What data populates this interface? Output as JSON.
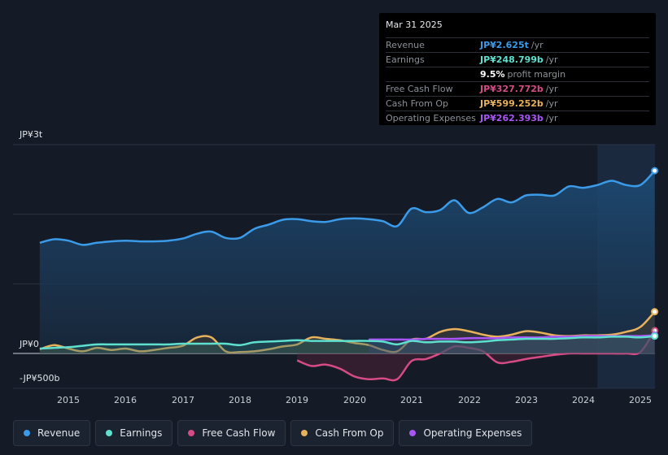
{
  "tooltip": {
    "date": "Mar 31 2025",
    "rows": [
      {
        "label": "Revenue",
        "value": "JP¥2.625t",
        "unit": "/yr",
        "color": "#3b9be8"
      },
      {
        "label": "Earnings",
        "value": "JP¥248.799b",
        "unit": "/yr",
        "color": "#5ee0cf"
      },
      {
        "label": "",
        "value": "9.5%",
        "unit": "profit margin",
        "color": "#ffffff"
      },
      {
        "label": "Free Cash Flow",
        "value": "JP¥327.772b",
        "unit": "/yr",
        "color": "#d64b86"
      },
      {
        "label": "Cash From Op",
        "value": "JP¥599.252b",
        "unit": "/yr",
        "color": "#e8b15c"
      },
      {
        "label": "Operating Expenses",
        "value": "JP¥262.393b",
        "unit": "/yr",
        "color": "#a855f7"
      }
    ]
  },
  "axis": {
    "top": "JP¥3t",
    "zero": "JP¥0",
    "bottom": "-JP¥500b"
  },
  "years": [
    "2015",
    "2016",
    "2017",
    "2018",
    "2019",
    "2020",
    "2021",
    "2022",
    "2023",
    "2024",
    "2025"
  ],
  "legend": [
    {
      "label": "Revenue",
      "color": "#3b9be8"
    },
    {
      "label": "Earnings",
      "color": "#5ee0cf"
    },
    {
      "label": "Free Cash Flow",
      "color": "#d64b86"
    },
    {
      "label": "Cash From Op",
      "color": "#e8b15c"
    },
    {
      "label": "Operating Expenses",
      "color": "#a855f7"
    }
  ],
  "chart_data": {
    "type": "area",
    "title": "",
    "xlabel": "",
    "ylabel": "",
    "ylim": [
      -500,
      3000
    ],
    "units": "JP¥ billions",
    "x": [
      2014.5,
      2014.75,
      2015.0,
      2015.25,
      2015.5,
      2015.75,
      2016.0,
      2016.25,
      2016.5,
      2016.75,
      2017.0,
      2017.25,
      2017.5,
      2017.75,
      2018.0,
      2018.25,
      2018.5,
      2018.75,
      2019.0,
      2019.25,
      2019.5,
      2019.75,
      2020.0,
      2020.25,
      2020.5,
      2020.75,
      2021.0,
      2021.25,
      2021.5,
      2021.75,
      2022.0,
      2022.25,
      2022.5,
      2022.75,
      2023.0,
      2023.25,
      2023.5,
      2023.75,
      2024.0,
      2024.25,
      2024.5,
      2024.75,
      2025.0,
      2025.25
    ],
    "series": [
      {
        "name": "Revenue",
        "values": [
          1590,
          1640,
          1620,
          1560,
          1590,
          1610,
          1620,
          1610,
          1610,
          1620,
          1650,
          1720,
          1750,
          1660,
          1660,
          1790,
          1850,
          1920,
          1930,
          1900,
          1890,
          1930,
          1940,
          1930,
          1900,
          1830,
          2080,
          2030,
          2060,
          2200,
          2020,
          2100,
          2220,
          2170,
          2270,
          2280,
          2270,
          2400,
          2380,
          2420,
          2480,
          2420,
          2420,
          2625
        ]
      },
      {
        "name": "Earnings",
        "values": [
          70,
          80,
          90,
          110,
          130,
          130,
          130,
          130,
          130,
          130,
          140,
          140,
          140,
          140,
          120,
          160,
          170,
          180,
          190,
          180,
          180,
          180,
          180,
          180,
          170,
          130,
          180,
          160,
          170,
          170,
          160,
          170,
          190,
          200,
          210,
          210,
          210,
          220,
          230,
          230,
          240,
          240,
          230,
          249
        ]
      },
      {
        "name": "Free Cash Flow",
        "values": [
          null,
          null,
          null,
          null,
          null,
          null,
          null,
          null,
          null,
          null,
          null,
          null,
          null,
          null,
          null,
          null,
          null,
          null,
          -100,
          -180,
          -160,
          -220,
          -330,
          -370,
          -360,
          -370,
          -110,
          -80,
          0,
          100,
          80,
          30,
          -130,
          -120,
          -80,
          -50,
          -20,
          0,
          0,
          0,
          0,
          0,
          20,
          328
        ]
      },
      {
        "name": "Cash From Op",
        "values": [
          60,
          120,
          70,
          30,
          80,
          50,
          70,
          30,
          50,
          80,
          110,
          230,
          230,
          30,
          20,
          30,
          60,
          100,
          130,
          230,
          210,
          190,
          150,
          120,
          50,
          30,
          200,
          210,
          310,
          350,
          320,
          270,
          240,
          270,
          320,
          300,
          260,
          250,
          260,
          260,
          270,
          310,
          380,
          599
        ]
      },
      {
        "name": "Operating Expenses",
        "values": [
          null,
          null,
          null,
          null,
          null,
          null,
          null,
          null,
          null,
          null,
          null,
          null,
          null,
          null,
          null,
          null,
          null,
          null,
          null,
          null,
          null,
          null,
          null,
          200,
          200,
          200,
          200,
          210,
          210,
          210,
          220,
          220,
          220,
          230,
          230,
          230,
          240,
          240,
          250,
          250,
          250,
          250,
          250,
          262
        ]
      }
    ]
  }
}
